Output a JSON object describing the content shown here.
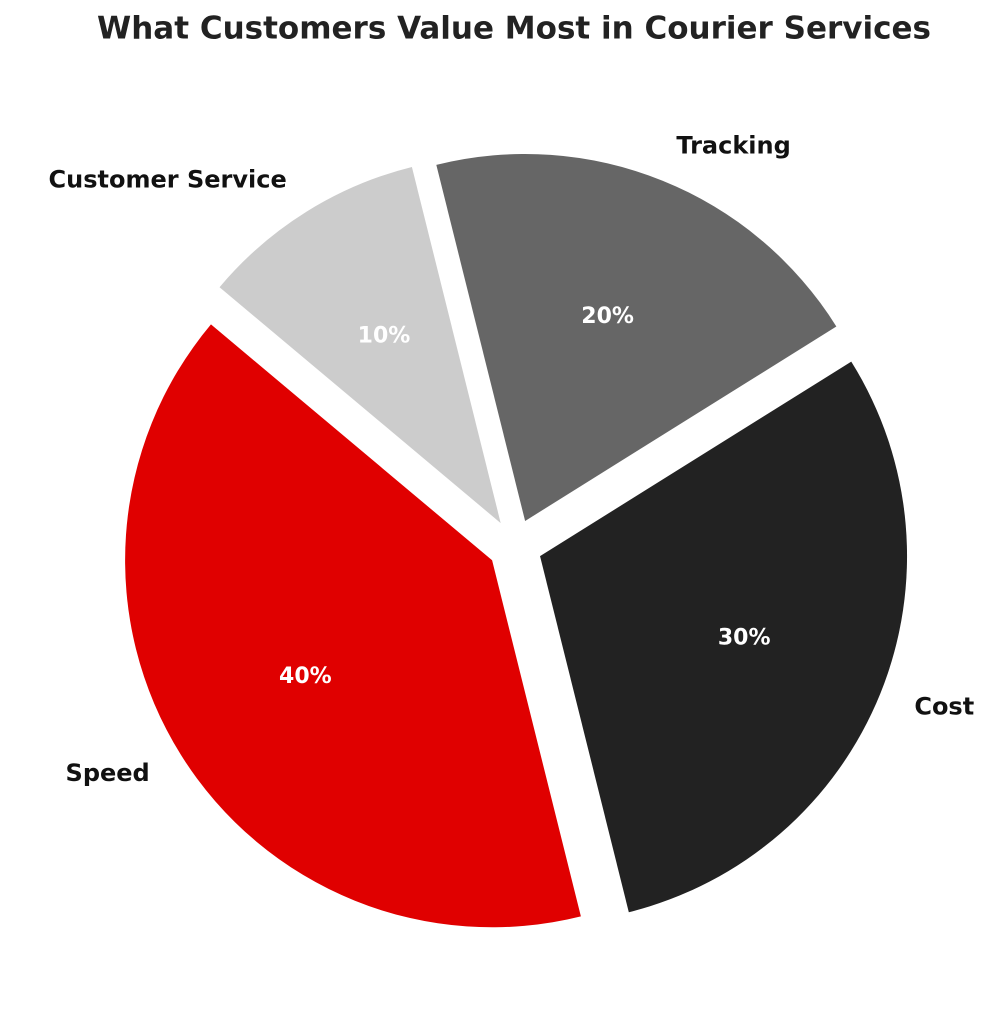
{
  "chart_data": {
    "type": "pie",
    "title": "What Customers Value Most in Courier Services",
    "categories": [
      "Speed",
      "Cost",
      "Tracking",
      "Customer Service"
    ],
    "values": [
      40,
      30,
      20,
      10
    ],
    "value_labels": [
      "40%",
      "30%",
      "20%",
      "10%"
    ],
    "colors": [
      "#e00000",
      "#222222",
      "#666666",
      "#cccccc"
    ]
  }
}
